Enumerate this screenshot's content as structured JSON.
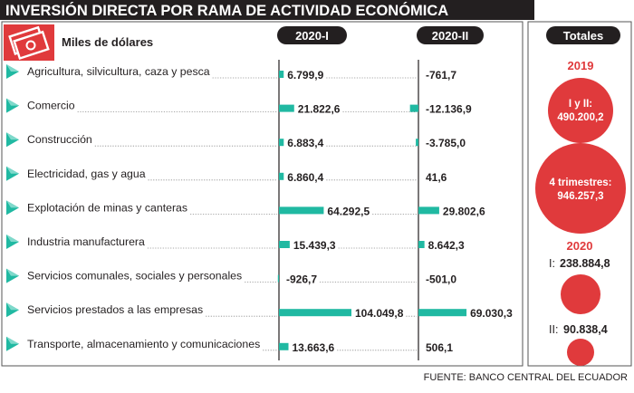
{
  "chart_data": {
    "type": "bar",
    "title": "INVERSIÓN DIRECTA POR RAMA DE ACTIVIDAD ECONÓMICA",
    "unit_label": "Miles de dólares",
    "categories": [
      "Agricultura, silvicultura, caza y pesca",
      "Comercio",
      "Construcción",
      "Electricidad, gas y agua",
      "Explotación de minas y canteras",
      "Industria manufacturera",
      "Servicios comunales, sociales y personales",
      "Servicios prestados a las empresas",
      "Transporte, almacenamiento y comunicaciones"
    ],
    "series": [
      {
        "name": "2020-I",
        "values": [
          6799.9,
          21822.6,
          6883.4,
          6860.4,
          64292.5,
          15439.3,
          -926.7,
          104049.8,
          13663.6
        ],
        "labels": [
          "6.799,9",
          "21.822,6",
          "6.883,4",
          "6.860,4",
          "64.292,5",
          "15.439,3",
          "-926,7",
          "104.049,8",
          "13.663,6"
        ]
      },
      {
        "name": "2020-II",
        "values": [
          -761.7,
          -12136.9,
          -3785.0,
          41.6,
          29802.6,
          8642.3,
          -501.0,
          69030.3,
          506.1
        ],
        "labels": [
          "-761,7",
          "-12.136,9",
          "-3.785,0",
          "41,6",
          "29.802,6",
          "8.642,3",
          "-501,0",
          "69.030,3",
          "506,1"
        ]
      }
    ],
    "totals": {
      "header": "Totales",
      "year_2019": "2019",
      "item_2019_a_label": "I y II:",
      "item_2019_a_value": "490.200,2",
      "item_2019_a_num": 490200.2,
      "item_2019_b_label": "4 trimestres:",
      "item_2019_b_value": "946.257,3",
      "item_2019_b_num": 946257.3,
      "year_2020": "2020",
      "item_2020_a_label": "I:",
      "item_2020_a_value": "238.884,8",
      "item_2020_a_num": 238884.8,
      "item_2020_b_label": "II:",
      "item_2020_b_value": "90.838,4",
      "item_2020_b_num": 90838.4
    },
    "source": "FUENTE: BANCO CENTRAL DEL ECUADOR"
  },
  "colors": {
    "bar": "#20b9a2",
    "red": "#e03a3c",
    "dark": "#231f20",
    "line": "#8a8a8a"
  },
  "icons": {
    "header": "money-bill-icon",
    "row": "triangle-arrow-icon"
  }
}
